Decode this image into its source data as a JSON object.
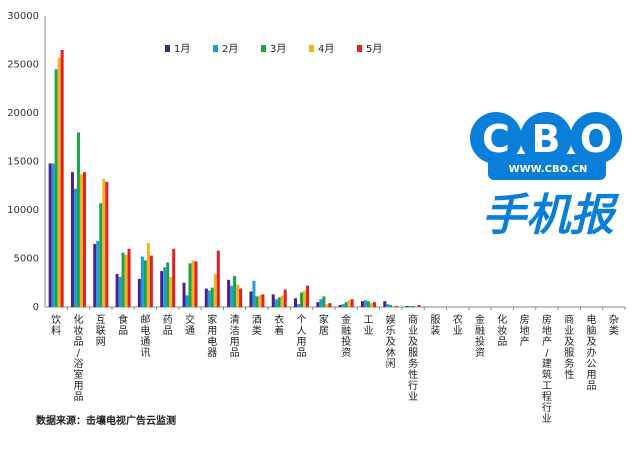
{
  "chart_data": {
    "type": "bar",
    "ylim": [
      0,
      30000
    ],
    "yticks": [
      0,
      5000,
      10000,
      15000,
      20000,
      25000,
      30000
    ],
    "legend_position": "top-center",
    "categories": [
      "饮料",
      "化妆品/浴室用品",
      "互联网",
      "食品",
      "邮电通讯",
      "药品",
      "交通",
      "家用电器",
      "清洁用品",
      "酒类",
      "衣着",
      "个人用品",
      "家居",
      "金融投资",
      "工业",
      "娱乐及休闲",
      "商业及服务性行业",
      "服装",
      "农业",
      "金融投资",
      "化妆品",
      "房地产",
      "房地产/建筑工程行业",
      "商业及服务性",
      "电脑及办公用品",
      "杂类"
    ],
    "series": [
      {
        "name": "1月",
        "color": "#4b1f8c",
        "values": [
          14800,
          13900,
          6500,
          3400,
          2900,
          3700,
          2500,
          1900,
          2800,
          1600,
          1300,
          900,
          500,
          200,
          600,
          600,
          100,
          0,
          0,
          0,
          0,
          0,
          0,
          0,
          0,
          0
        ]
      },
      {
        "name": "2月",
        "color": "#1f9bdc",
        "values": [
          14800,
          12200,
          6800,
          3100,
          5200,
          4100,
          1200,
          1700,
          2200,
          2700,
          800,
          300,
          800,
          300,
          700,
          300,
          100,
          0,
          0,
          0,
          0,
          0,
          0,
          0,
          0,
          0
        ]
      },
      {
        "name": "3月",
        "color": "#1ca24a",
        "values": [
          24500,
          18000,
          10700,
          5600,
          4800,
          4600,
          4500,
          2000,
          3200,
          1100,
          1000,
          1500,
          1100,
          500,
          600,
          200,
          100,
          0,
          0,
          0,
          0,
          0,
          0,
          0,
          0,
          0
        ]
      },
      {
        "name": "4月",
        "color": "#f0b323",
        "values": [
          25700,
          13700,
          13200,
          5400,
          6600,
          3100,
          4800,
          3400,
          2300,
          1200,
          1200,
          1700,
          300,
          700,
          400,
          100,
          0,
          0,
          0,
          0,
          0,
          0,
          0,
          0,
          0,
          0
        ]
      },
      {
        "name": "5月",
        "color": "#e31e25",
        "values": [
          26500,
          13900,
          12900,
          6000,
          5300,
          6000,
          4700,
          5800,
          1900,
          1300,
          1800,
          2200,
          400,
          800,
          500,
          100,
          200,
          0,
          0,
          0,
          0,
          0,
          0,
          0,
          0,
          0
        ]
      }
    ]
  },
  "footer": {
    "source": "数据来源：击壤电视广告云监测"
  },
  "logo": {
    "letters": [
      "C",
      "B",
      "O"
    ],
    "url": "WWW.CBO.CN",
    "name": "手机报",
    "colors": {
      "bubble": "#0a7fd9",
      "text_dark": "#0a5fb0"
    }
  }
}
